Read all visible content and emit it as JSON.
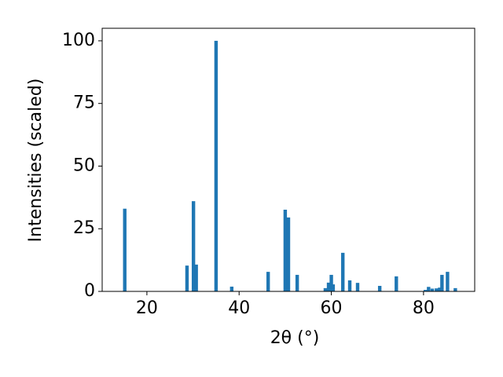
{
  "chart_data": {
    "type": "bar",
    "xlabel": "2θ (°)",
    "ylabel": "Intensities (scaled)",
    "x": [
      15.2,
      28.7,
      30.1,
      30.7,
      35.0,
      38.4,
      46.3,
      50.0,
      50.7,
      52.6,
      58.7,
      59.4,
      60.0,
      60.4,
      62.5,
      64.0,
      65.7,
      70.5,
      74.1,
      80.4,
      81.1,
      81.9,
      82.8,
      83.5,
      84.0,
      85.2,
      86.9
    ],
    "values": [
      33,
      10.3,
      36,
      10.7,
      100,
      1.9,
      7.8,
      32.6,
      29.5,
      6.6,
      1.3,
      3.5,
      6.6,
      2.8,
      15.4,
      4.4,
      3.4,
      2.2,
      6.0,
      0.6,
      1.8,
      1.1,
      1.2,
      1.5,
      6.6,
      7.8,
      1.3
    ],
    "color": "#1f77b4",
    "xlim": [
      10.3,
      91.1
    ],
    "xticks": [
      20,
      40,
      60,
      80
    ],
    "ylim": [
      0,
      105
    ],
    "yticks": [
      0,
      25,
      50,
      75,
      100
    ]
  }
}
